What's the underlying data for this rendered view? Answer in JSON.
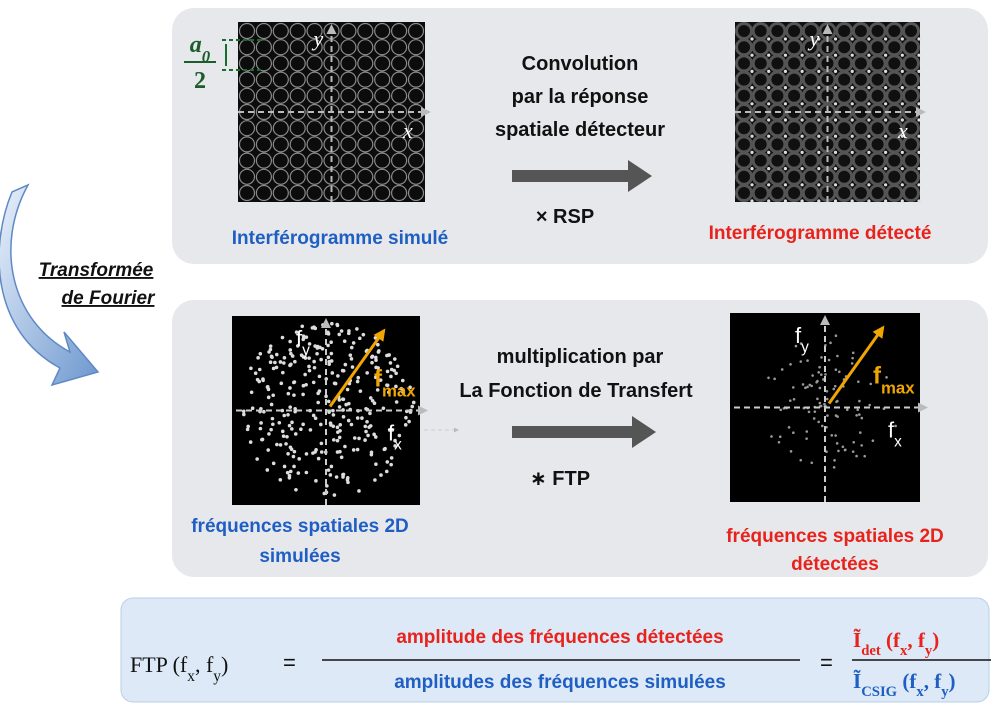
{
  "side_label": [
    "Transformée",
    "de Fourier"
  ],
  "top_panel": {
    "left_image": {
      "y_label": "y",
      "x_label": "x",
      "period": [
        "a",
        "0"
      ],
      "period_denominator": "2"
    },
    "left_caption": "Interférogramme simulé",
    "operation": [
      "Convolution",
      "par la réponse",
      "spatiale détecteur"
    ],
    "operator": "× RSP",
    "right_image": {
      "y_label": "y",
      "x_label": "x"
    },
    "right_caption": "Interférogramme détecté"
  },
  "middle_panel": {
    "left_image": {
      "y_label": [
        "f",
        "y"
      ],
      "x_label": [
        "f",
        "x"
      ],
      "radius_label": [
        "f",
        "max"
      ]
    },
    "left_caption": [
      "fréquences spatiales 2D",
      "simulées"
    ],
    "operation": [
      "multiplication  par",
      "La Fonction de Transfert"
    ],
    "operator": "∗ FTP",
    "right_image": {
      "y_label": [
        "f",
        "y"
      ],
      "x_label": [
        "f",
        "x"
      ],
      "radius_label": [
        "f",
        "max"
      ]
    },
    "right_caption": [
      "fréquences spatiales 2D",
      "détectées"
    ]
  },
  "formula": {
    "lhs": [
      "FTP (f",
      "x",
      ", f",
      "y",
      ")"
    ],
    "equals": "=",
    "numerator": "amplitude des fréquences détectées",
    "denominator": "amplitudes des  fréquences simulées",
    "equals_2": "=",
    "ratio_numerator": [
      "Ĩ",
      "det",
      "  (f",
      "x",
      ", f",
      "y",
      ")"
    ],
    "ratio_denominator": [
      "Ĩ",
      "CSIG",
      " (f",
      "x",
      ", f",
      "y",
      ")"
    ]
  }
}
